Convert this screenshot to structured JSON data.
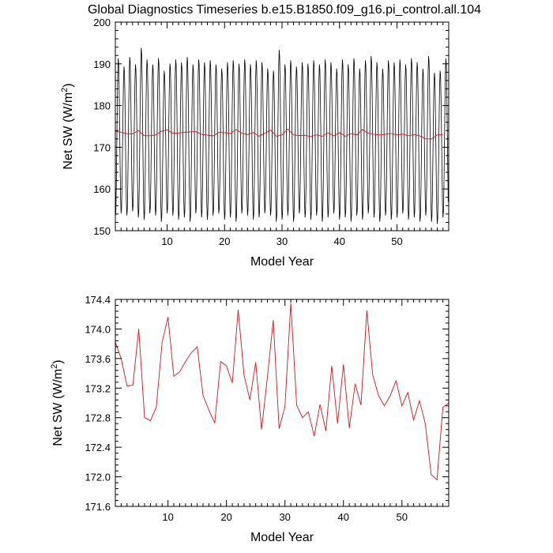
{
  "title": "Global Diagnostics Timeseries b.e15.B1850.f09_g16.pi_control.all.104",
  "chart_data": [
    {
      "type": "line",
      "xlabel": "Model Year",
      "ylabel_main": "Net SW (W/m",
      "ylabel_sup": "2",
      "ylabel_tail": ")",
      "xlim": [
        1,
        59
      ],
      "ylim": [
        150,
        200
      ],
      "x_ticks": [
        10,
        20,
        30,
        40,
        50
      ],
      "y_ticks": [
        150,
        160,
        170,
        180,
        190,
        200
      ],
      "y_tick_labels": [
        "150",
        "160",
        "170",
        "180",
        "190",
        "200"
      ],
      "series": [
        {
          "color": "#000000",
          "monthly_peaks": [
            191.5,
            189.5,
            191.8,
            190.0,
            194.0,
            191.2,
            190.0,
            191.5,
            188.5,
            190.2,
            191.2,
            190.5,
            191.8,
            190.0,
            191.2,
            190.5,
            191.0,
            190.0,
            189.0,
            190.5,
            191.0,
            190.2,
            191.2,
            190.0,
            191.0,
            190.5,
            189.0,
            188.5,
            193.5,
            190.0,
            191.0,
            189.5,
            190.5,
            190.2,
            191.0,
            190.0,
            191.2,
            190.5,
            189.0,
            191.2,
            190.0,
            191.5,
            189.0,
            191.0,
            192.0,
            190.5,
            189.0,
            191.0,
            190.5,
            191.2,
            190.0,
            191.5,
            190.5,
            189.0,
            192.0,
            188.0,
            188.5,
            191.5
          ],
          "monthly_troughs": [
            153.0,
            154.0,
            153.5,
            154.5,
            153.0,
            152.5,
            154.0,
            153.5,
            152.0,
            154.0,
            153.5,
            152.5,
            153.0,
            152.0,
            154.0,
            153.0,
            152.5,
            153.5,
            154.0,
            152.5,
            153.0,
            152.0,
            154.0,
            153.5,
            152.5,
            153.0,
            154.0,
            153.5,
            152.0,
            152.5,
            153.5,
            152.0,
            154.0,
            153.0,
            152.5,
            153.5,
            152.0,
            153.0,
            154.0,
            152.5,
            153.0,
            152.0,
            153.5,
            152.5,
            154.0,
            153.0,
            152.0,
            153.5,
            152.5,
            153.0,
            154.0,
            152.5,
            153.0,
            152.0,
            153.5,
            152.0,
            151.5,
            153.0
          ]
        },
        {
          "color": "#e0101a",
          "x": [
            1,
            2,
            3,
            4,
            5,
            6,
            7,
            8,
            9,
            10,
            11,
            12,
            13,
            14,
            15,
            16,
            17,
            18,
            19,
            20,
            21,
            22,
            23,
            24,
            25,
            26,
            27,
            28,
            29,
            30,
            31,
            32,
            33,
            34,
            35,
            36,
            37,
            38,
            39,
            40,
            41,
            42,
            43,
            44,
            45,
            46,
            47,
            48,
            49,
            50,
            51,
            52,
            53,
            54,
            55,
            56,
            57,
            58
          ],
          "values": [
            173.82,
            173.6,
            173.23,
            173.24,
            174.0,
            172.8,
            172.76,
            172.94,
            173.82,
            174.16,
            173.36,
            173.42,
            173.56,
            173.68,
            173.76,
            173.1,
            172.9,
            172.73,
            173.56,
            173.5,
            173.27,
            174.26,
            173.38,
            173.04,
            173.55,
            172.64,
            173.35,
            174.12,
            172.65,
            172.95,
            174.35,
            172.97,
            172.8,
            172.88,
            172.55,
            172.98,
            172.62,
            173.5,
            172.72,
            173.52,
            172.66,
            173.26,
            172.97,
            174.25,
            173.38,
            173.1,
            172.96,
            173.1,
            173.3,
            172.96,
            173.14,
            172.77,
            173.03,
            172.72,
            172.03,
            171.96,
            172.94,
            173.0
          ]
        }
      ]
    },
    {
      "type": "line",
      "xlabel": "Model Year",
      "ylabel_main": "Net SW (W/m",
      "ylabel_sup": "2",
      "ylabel_tail": ")",
      "xlim": [
        1,
        58
      ],
      "ylim": [
        171.6,
        174.4
      ],
      "x_ticks": [
        10,
        20,
        30,
        40,
        50
      ],
      "y_ticks": [
        171.6,
        172.0,
        172.4,
        172.8,
        173.2,
        173.6,
        174.0,
        174.4
      ],
      "y_tick_labels": [
        "171.6",
        "172.0",
        "172.4",
        "172.8",
        "173.2",
        "173.6",
        "174.0",
        "174.4"
      ],
      "series": [
        {
          "color": "#e0101a",
          "x": [
            1,
            2,
            3,
            4,
            5,
            6,
            7,
            8,
            9,
            10,
            11,
            12,
            13,
            14,
            15,
            16,
            17,
            18,
            19,
            20,
            21,
            22,
            23,
            24,
            25,
            26,
            27,
            28,
            29,
            30,
            31,
            32,
            33,
            34,
            35,
            36,
            37,
            38,
            39,
            40,
            41,
            42,
            43,
            44,
            45,
            46,
            47,
            48,
            49,
            50,
            51,
            52,
            53,
            54,
            55,
            56,
            57,
            58
          ],
          "values": [
            173.82,
            173.6,
            173.23,
            173.24,
            174.0,
            172.8,
            172.76,
            172.94,
            173.82,
            174.16,
            173.36,
            173.42,
            173.56,
            173.68,
            173.76,
            173.1,
            172.9,
            172.73,
            173.56,
            173.5,
            173.27,
            174.26,
            173.38,
            173.04,
            173.55,
            172.64,
            173.35,
            174.12,
            172.65,
            172.95,
            174.35,
            172.97,
            172.8,
            172.88,
            172.55,
            172.98,
            172.62,
            173.5,
            172.72,
            173.52,
            172.66,
            173.26,
            172.97,
            174.25,
            173.38,
            173.1,
            172.96,
            173.1,
            173.3,
            172.96,
            173.14,
            172.77,
            173.03,
            172.72,
            172.03,
            171.96,
            172.94,
            173.0
          ]
        }
      ]
    }
  ]
}
